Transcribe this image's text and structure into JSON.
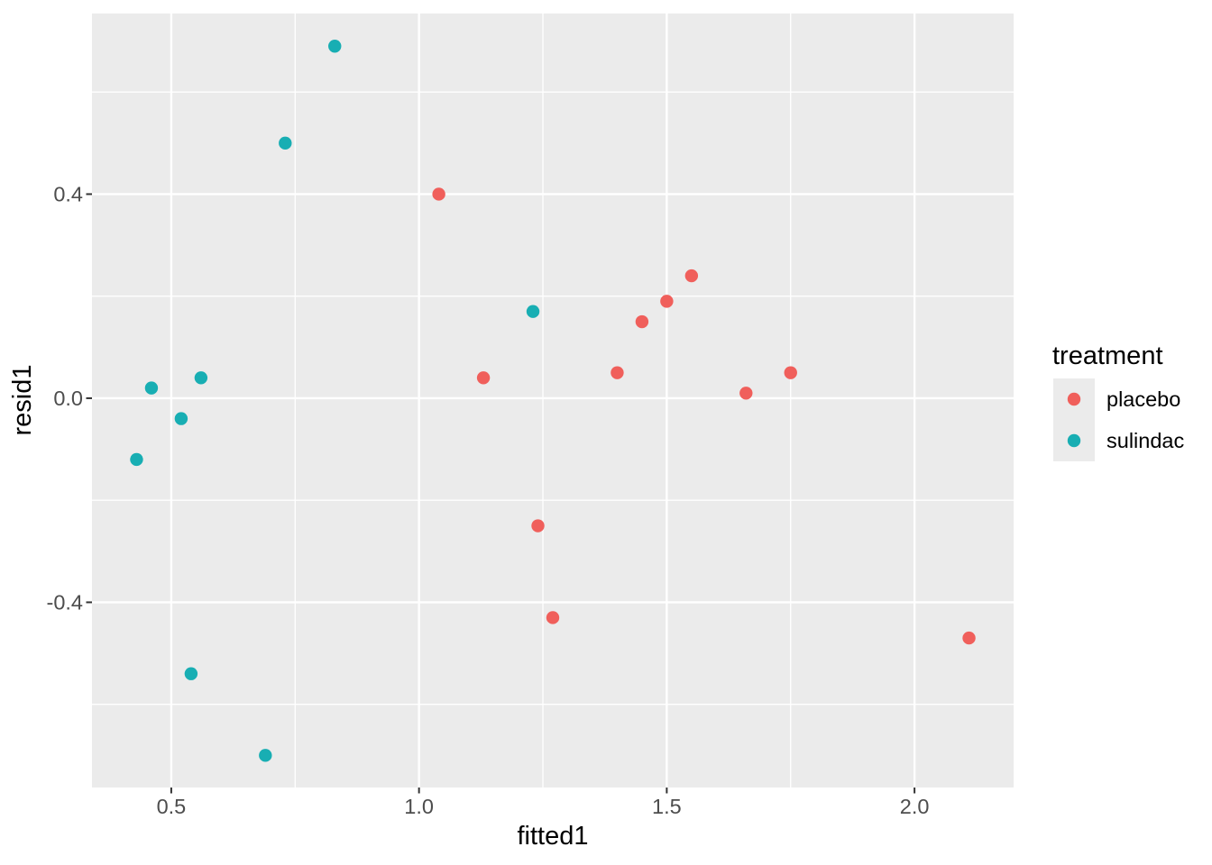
{
  "chart_data": {
    "type": "scatter",
    "title": "",
    "xlabel": "fitted1",
    "ylabel": "resid1",
    "legend": {
      "title": "treatment",
      "position": "right"
    },
    "grid": true,
    "xlim": [
      0.34,
      2.2
    ],
    "ylim": [
      -0.763,
      0.754
    ],
    "x_major_ticks": [
      0.5,
      1.0,
      1.5,
      2.0
    ],
    "x_tick_labels": [
      "0.5",
      "1.0",
      "1.5",
      "2.0"
    ],
    "x_minor_ticks": [
      0.75,
      1.25,
      1.75
    ],
    "y_major_ticks": [
      0.4,
      0.0,
      -0.4
    ],
    "y_tick_labels": [
      "0.4",
      "0.0",
      "-0.4"
    ],
    "y_minor_ticks": [
      0.6,
      0.2,
      -0.2,
      -0.6
    ],
    "series": [
      {
        "name": "placebo",
        "color": "#F05F5B",
        "points": [
          [
            1.04,
            0.4
          ],
          [
            1.13,
            0.04
          ],
          [
            1.24,
            -0.25
          ],
          [
            1.27,
            -0.43
          ],
          [
            1.4,
            0.05
          ],
          [
            1.45,
            0.15
          ],
          [
            1.5,
            0.19
          ],
          [
            1.55,
            0.24
          ],
          [
            1.66,
            0.01
          ],
          [
            1.75,
            0.05
          ],
          [
            2.11,
            -0.47
          ]
        ]
      },
      {
        "name": "sulindac",
        "color": "#18AEB3",
        "points": [
          [
            0.43,
            -0.12
          ],
          [
            0.46,
            0.02
          ],
          [
            0.52,
            -0.04
          ],
          [
            0.54,
            -0.54
          ],
          [
            0.56,
            0.04
          ],
          [
            0.69,
            -0.7
          ],
          [
            0.73,
            0.5
          ],
          [
            0.83,
            0.69
          ],
          [
            1.23,
            0.17
          ]
        ]
      }
    ]
  },
  "style": {
    "panel_bg": "#EBEBEB",
    "grid_color": "#FFFFFF",
    "axis_text_color": "#4D4D4D",
    "title_color": "#000000",
    "tick_mark_color": "#333333",
    "legend_key_bg": "#EBEBEB",
    "point_radius": 7.2
  }
}
